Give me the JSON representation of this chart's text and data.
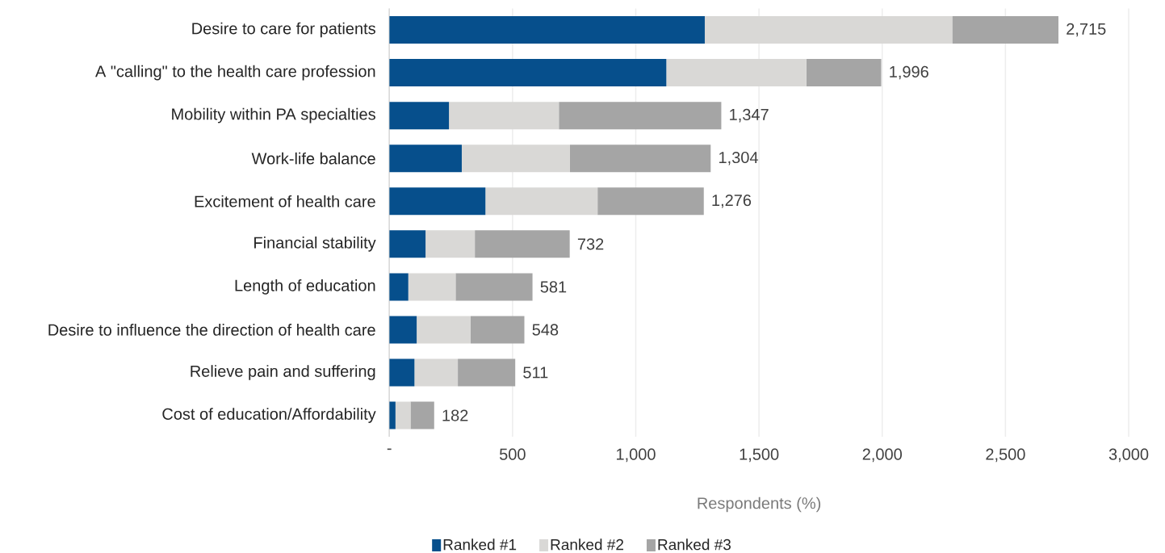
{
  "chart_data": {
    "type": "bar",
    "orientation": "horizontal",
    "stacked": true,
    "categories": [
      "Desire to care for patients",
      "A \"calling\" to the health care profession",
      "Mobility within PA specialties",
      "Work-life balance",
      "Excitement of health care",
      "Financial stability",
      "Length of education",
      "Desire to influence the direction of health care",
      "Relieve pain and suffering",
      "Cost of education/Affordability"
    ],
    "series": [
      {
        "name": "Ranked #1",
        "color": "#064f8c",
        "values": [
          1280,
          1124,
          242,
          294,
          390,
          147,
          77,
          111,
          102,
          25
        ]
      },
      {
        "name": "Ranked #2",
        "color": "#d9d8d6",
        "values": [
          1004,
          568,
          446,
          439,
          455,
          200,
          192,
          219,
          176,
          61
        ]
      },
      {
        "name": "Ranked #3",
        "color": "#a5a5a5",
        "values": [
          431,
          304,
          659,
          571,
          431,
          385,
          312,
          218,
          233,
          96
        ]
      }
    ],
    "totals": [
      "2,715",
      "1,996",
      "1,347",
      "1,304",
      "1,276",
      "732",
      "581",
      "548",
      "511",
      "182"
    ],
    "xlabel": "Respondents (%)",
    "xlim": [
      0,
      3000
    ],
    "xticks": [
      {
        "value": 0,
        "label": "-"
      },
      500,
      {
        "value": 1000,
        "label": "1,000"
      },
      {
        "value": 1500,
        "label": "1,500"
      },
      {
        "value": 2000,
        "label": "2,000"
      },
      {
        "value": 2500,
        "label": "2,500"
      },
      {
        "value": 3000,
        "label": "3,000"
      }
    ],
    "grid": "x",
    "legend": "bottom"
  }
}
